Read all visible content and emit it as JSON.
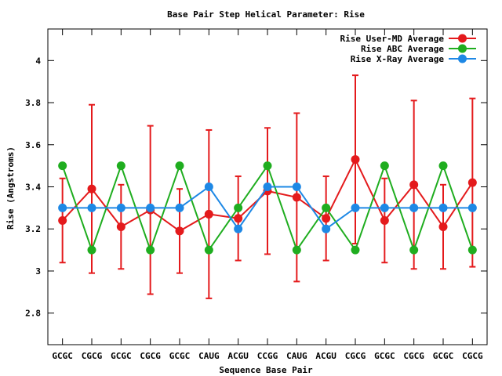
{
  "chart_data": {
    "type": "line",
    "title": "Base Pair Step Helical Parameter: Rise",
    "xlabel": "Sequence Base Pair",
    "ylabel": "Rise (Angstroms)",
    "ylim": [
      2.65,
      4.15
    ],
    "yticks": [
      2.8,
      3,
      3.2,
      3.4,
      3.6,
      3.8,
      4
    ],
    "ytick_labels": [
      "2.8",
      "3",
      "3.2",
      "3.4",
      "3.6",
      "3.8",
      "4"
    ],
    "categories": [
      "GCGC",
      "CGCG",
      "GCGC",
      "CGCG",
      "GCGC",
      "CAUG",
      "ACGU",
      "CCGG",
      "CAUG",
      "ACGU",
      "CGCG",
      "GCGC",
      "CGCG",
      "GCGC",
      "CGCG"
    ],
    "legend_position": "top-right",
    "grid": false,
    "series": [
      {
        "name": "Rise User-MD Average",
        "color": "#e41a1c",
        "values": [
          3.24,
          3.39,
          3.21,
          3.29,
          3.19,
          3.27,
          3.25,
          3.38,
          3.35,
          3.25,
          3.53,
          3.24,
          3.41,
          3.21,
          3.42
        ],
        "error": [
          0.2,
          0.4,
          0.2,
          0.4,
          0.2,
          0.4,
          0.2,
          0.3,
          0.4,
          0.2,
          0.4,
          0.2,
          0.4,
          0.2,
          0.4
        ]
      },
      {
        "name": "Rise ABC Average",
        "color": "#1fad1f",
        "values": [
          3.5,
          3.1,
          3.5,
          3.1,
          3.5,
          3.1,
          3.3,
          3.5,
          3.1,
          3.3,
          3.1,
          3.5,
          3.1,
          3.5,
          3.1
        ]
      },
      {
        "name": "Rise X-Ray Average",
        "color": "#1e88e5",
        "values": [
          3.3,
          3.3,
          3.3,
          3.3,
          3.3,
          3.4,
          3.2,
          3.4,
          3.4,
          3.2,
          3.3,
          3.3,
          3.3,
          3.3,
          3.3
        ]
      }
    ]
  }
}
